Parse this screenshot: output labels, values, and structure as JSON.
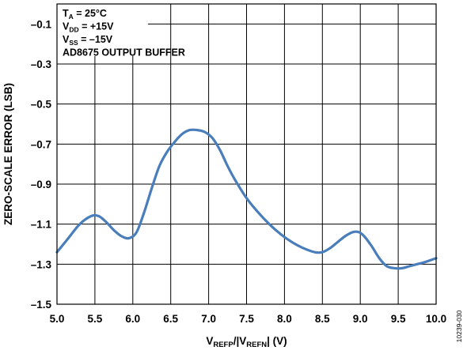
{
  "chart_data": {
    "type": "line",
    "title": "",
    "xlabel": {
      "parts": [
        {
          "t": "V",
          "sub": false
        },
        {
          "t": "REFP",
          "sub": true
        },
        {
          "t": "/|V",
          "sub": false
        },
        {
          "t": "REFN",
          "sub": true
        },
        {
          "t": "| (V)",
          "sub": false
        }
      ]
    },
    "ylabel": "ZERO-SCALE ERROR (LSB)",
    "xlim": [
      5.0,
      10.0
    ],
    "ylim": [
      -1.5,
      0.0
    ],
    "x_ticks": [
      "5.0",
      "5.5",
      "6.0",
      "6.5",
      "7.0",
      "7.5",
      "8.0",
      "8.5",
      "9.0",
      "9.5",
      "10.0"
    ],
    "y_ticks": [
      {
        "value": -0.1,
        "label": "–0.1"
      },
      {
        "value": -0.3,
        "label": "–0.3"
      },
      {
        "value": -0.5,
        "label": "–0.5"
      },
      {
        "value": -0.7,
        "label": "–0.7"
      },
      {
        "value": -0.9,
        "label": "–0.9"
      },
      {
        "value": -1.1,
        "label": "–1.1"
      },
      {
        "value": -1.3,
        "label": "–1.3"
      },
      {
        "value": -1.5,
        "label": "–1.5"
      }
    ],
    "grid": true,
    "series": [
      {
        "color": "#4a7ebb",
        "x": [
          5.0,
          5.15,
          5.3,
          5.45,
          5.55,
          5.65,
          5.75,
          5.85,
          5.95,
          6.05,
          6.15,
          6.25,
          6.35,
          6.45,
          6.55,
          6.65,
          6.75,
          6.85,
          6.95,
          7.05,
          7.15,
          7.25,
          7.35,
          7.5,
          7.65,
          7.8,
          7.95,
          8.1,
          8.25,
          8.4,
          8.5,
          8.6,
          8.7,
          8.8,
          8.9,
          8.98,
          9.05,
          9.15,
          9.25,
          9.35,
          9.45,
          9.55,
          9.65,
          9.75,
          9.85,
          10.0
        ],
        "y": [
          -1.24,
          -1.17,
          -1.1,
          -1.06,
          -1.06,
          -1.09,
          -1.13,
          -1.16,
          -1.17,
          -1.14,
          -1.04,
          -0.92,
          -0.81,
          -0.74,
          -0.69,
          -0.65,
          -0.63,
          -0.63,
          -0.64,
          -0.67,
          -0.73,
          -0.81,
          -0.88,
          -0.97,
          -1.04,
          -1.1,
          -1.15,
          -1.19,
          -1.22,
          -1.24,
          -1.24,
          -1.22,
          -1.19,
          -1.16,
          -1.14,
          -1.14,
          -1.16,
          -1.21,
          -1.27,
          -1.31,
          -1.32,
          -1.32,
          -1.31,
          -1.3,
          -1.29,
          -1.27
        ]
      }
    ]
  },
  "annotation": {
    "lines": [
      {
        "parts": [
          {
            "t": "T",
            "sub": false
          },
          {
            "t": "A",
            "sub": true
          },
          {
            "t": " = 25°C",
            "sub": false
          }
        ]
      },
      {
        "parts": [
          {
            "t": "V",
            "sub": false
          },
          {
            "t": "DD",
            "sub": true
          },
          {
            "t": " = +15V",
            "sub": false
          }
        ]
      },
      {
        "parts": [
          {
            "t": "V",
            "sub": false
          },
          {
            "t": "SS",
            "sub": true
          },
          {
            "t": " = –15V",
            "sub": false
          }
        ]
      },
      {
        "parts": [
          {
            "t": "AD8675 OUTPUT BUFFER",
            "sub": false
          }
        ]
      }
    ]
  },
  "figure_code": "10239-030"
}
